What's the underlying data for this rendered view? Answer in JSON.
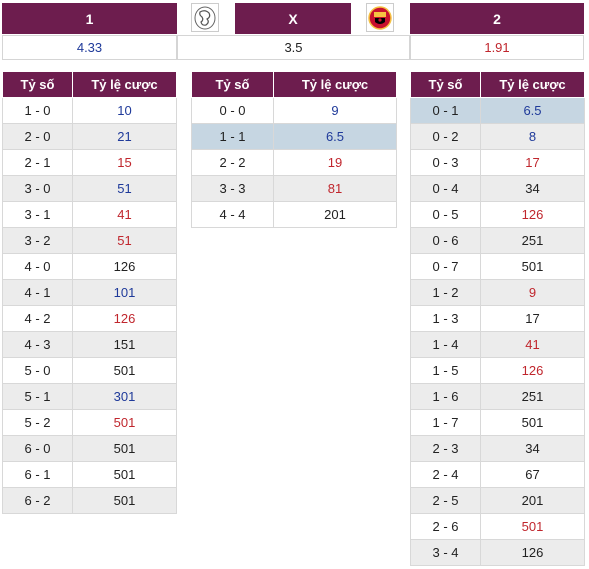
{
  "header": {
    "home_label": "1",
    "draw_label": "X",
    "away_label": "2",
    "home_logo_icon": "ajax-crest-icon",
    "away_logo_icon": "manchester-united-crest-icon"
  },
  "odds": {
    "home": "4.33",
    "draw": "3.5",
    "away": "1.91"
  },
  "table_headers": {
    "score": "Tỷ số",
    "rate": "Tỷ lệ cược"
  },
  "colors": {
    "header_bg": "#6d1d4e",
    "blue": "#1f3a9a",
    "red": "#c0262d",
    "highlight": "#c6d6e2"
  },
  "home_wins": [
    {
      "score": "1 - 0",
      "rate": "10",
      "color": "blue"
    },
    {
      "score": "2 - 0",
      "rate": "21",
      "color": "blue"
    },
    {
      "score": "2 - 1",
      "rate": "15",
      "color": "red"
    },
    {
      "score": "3 - 0",
      "rate": "51",
      "color": "blue"
    },
    {
      "score": "3 - 1",
      "rate": "41",
      "color": "red"
    },
    {
      "score": "3 - 2",
      "rate": "51",
      "color": "red"
    },
    {
      "score": "4 - 0",
      "rate": "126",
      "color": "black"
    },
    {
      "score": "4 - 1",
      "rate": "101",
      "color": "blue"
    },
    {
      "score": "4 - 2",
      "rate": "126",
      "color": "red"
    },
    {
      "score": "4 - 3",
      "rate": "151",
      "color": "black"
    },
    {
      "score": "5 - 0",
      "rate": "501",
      "color": "black"
    },
    {
      "score": "5 - 1",
      "rate": "301",
      "color": "blue"
    },
    {
      "score": "5 - 2",
      "rate": "501",
      "color": "red"
    },
    {
      "score": "6 - 0",
      "rate": "501",
      "color": "black"
    },
    {
      "score": "6 - 1",
      "rate": "501",
      "color": "black"
    },
    {
      "score": "6 - 2",
      "rate": "501",
      "color": "black"
    }
  ],
  "draws": [
    {
      "score": "0 - 0",
      "rate": "9",
      "color": "blue"
    },
    {
      "score": "1 - 1",
      "rate": "6.5",
      "color": "blue",
      "highlight": true
    },
    {
      "score": "2 - 2",
      "rate": "19",
      "color": "red"
    },
    {
      "score": "3 - 3",
      "rate": "81",
      "color": "red"
    },
    {
      "score": "4 - 4",
      "rate": "201",
      "color": "black"
    }
  ],
  "away_wins": [
    {
      "score": "0 - 1",
      "rate": "6.5",
      "color": "blue",
      "highlight": true
    },
    {
      "score": "0 - 2",
      "rate": "8",
      "color": "blue"
    },
    {
      "score": "0 - 3",
      "rate": "17",
      "color": "red"
    },
    {
      "score": "0 - 4",
      "rate": "34",
      "color": "black"
    },
    {
      "score": "0 - 5",
      "rate": "126",
      "color": "red"
    },
    {
      "score": "0 - 6",
      "rate": "251",
      "color": "black"
    },
    {
      "score": "0 - 7",
      "rate": "501",
      "color": "black"
    },
    {
      "score": "1 - 2",
      "rate": "9",
      "color": "red"
    },
    {
      "score": "1 - 3",
      "rate": "17",
      "color": "black"
    },
    {
      "score": "1 - 4",
      "rate": "41",
      "color": "red"
    },
    {
      "score": "1 - 5",
      "rate": "126",
      "color": "red"
    },
    {
      "score": "1 - 6",
      "rate": "251",
      "color": "black"
    },
    {
      "score": "1 - 7",
      "rate": "501",
      "color": "black"
    },
    {
      "score": "2 - 3",
      "rate": "34",
      "color": "black"
    },
    {
      "score": "2 - 4",
      "rate": "67",
      "color": "black"
    },
    {
      "score": "2 - 5",
      "rate": "201",
      "color": "black"
    },
    {
      "score": "2 - 6",
      "rate": "501",
      "color": "red"
    },
    {
      "score": "3 - 4",
      "rate": "126",
      "color": "black"
    }
  ]
}
